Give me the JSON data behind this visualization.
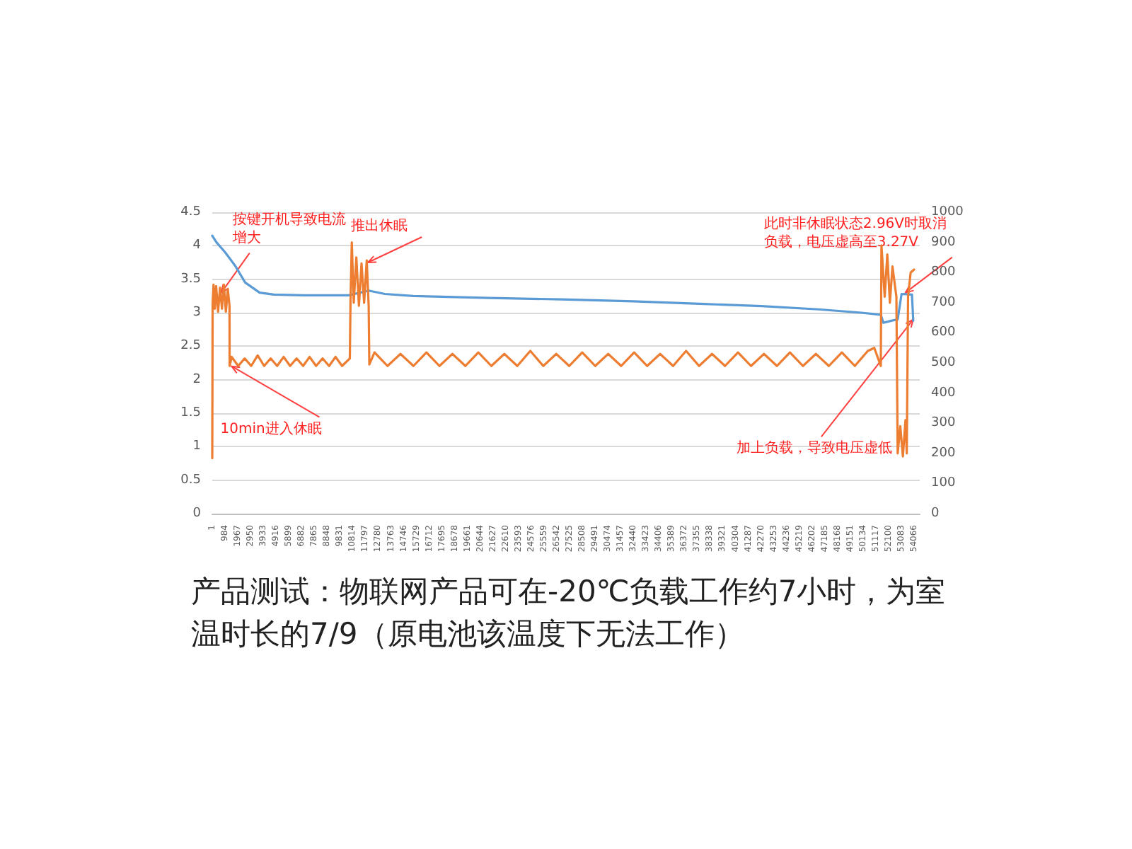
{
  "chart_data": {
    "type": "line",
    "grid": "y",
    "marker": "none",
    "line_style": "solid",
    "xlim": [
      1,
      54500
    ],
    "xticks": [
      1,
      984,
      1967,
      2950,
      3933,
      4916,
      5899,
      6882,
      7865,
      8848,
      9831,
      10814,
      11797,
      12780,
      13763,
      14746,
      15729,
      16712,
      17695,
      18678,
      19661,
      20644,
      21627,
      22610,
      23593,
      24576,
      25559,
      26542,
      27525,
      28508,
      29491,
      30474,
      31457,
      32440,
      33423,
      34406,
      35389,
      36372,
      37355,
      38338,
      39321,
      40304,
      41287,
      42270,
      43253,
      44236,
      45219,
      46202,
      47185,
      48168,
      49151,
      50134,
      51117,
      52100,
      53083,
      54066
    ],
    "ylim": [
      0,
      4.5
    ],
    "yticks": [
      0,
      0.5,
      1,
      1.5,
      2,
      2.5,
      3,
      3.5,
      4,
      4.5
    ],
    "y2lim": [
      0,
      1000
    ],
    "y2ticks": [
      0,
      100,
      200,
      300,
      400,
      500,
      600,
      700,
      800,
      900,
      1000
    ],
    "series": [
      {
        "color": "#5b9bd5",
        "x": [
          1,
          330,
          1000,
          1770,
          2540,
          3650,
          4750,
          7000,
          10500,
          12050,
          13300,
          15500,
          21300,
          26850,
          32400,
          37900,
          42300,
          46700,
          50000,
          51500,
          51700,
          52300,
          52800,
          53100,
          53900,
          54000,
          54066
        ],
        "values": [
          4.15,
          4.05,
          3.9,
          3.7,
          3.45,
          3.3,
          3.27,
          3.26,
          3.26,
          3.33,
          3.28,
          3.25,
          3.22,
          3.2,
          3.17,
          3.13,
          3.1,
          3.05,
          3.0,
          2.97,
          2.85,
          2.88,
          2.9,
          3.28,
          3.27,
          2.88,
          2.88
        ]
      },
      {
        "color": "#ed7d31",
        "axis": "y2",
        "x": [
          1,
          30,
          100,
          200,
          300,
          450,
          600,
          750,
          900,
          1050,
          1200,
          1330,
          1340,
          1500,
          2000,
          2500,
          3000,
          3500,
          4000,
          4500,
          5000,
          5500,
          6000,
          6500,
          7000,
          7500,
          8000,
          8500,
          9000,
          9500,
          10000,
          10600,
          10650,
          10750,
          10900,
          11100,
          11300,
          11500,
          11700,
          11900,
          12050,
          12100,
          12500,
          13500,
          14500,
          15500,
          16500,
          17500,
          18500,
          19500,
          20500,
          21500,
          22500,
          23500,
          24500,
          25500,
          26500,
          27500,
          28500,
          29500,
          30500,
          31500,
          32500,
          33500,
          34500,
          35500,
          36500,
          37500,
          38500,
          39500,
          40500,
          41500,
          42500,
          43500,
          44500,
          45500,
          46500,
          47500,
          48500,
          49500,
          50500,
          51000,
          51500,
          51550,
          51800,
          52000,
          52200,
          52400,
          52700,
          52800,
          53000,
          53200,
          53400,
          53500,
          53600,
          53800,
          54066
        ],
        "values": [
          184,
          700,
          760,
          680,
          755,
          670,
          750,
          680,
          760,
          670,
          745,
          690,
          490,
          520,
          490,
          515,
          490,
          525,
          490,
          515,
          490,
          520,
          490,
          515,
          490,
          520,
          490,
          515,
          490,
          520,
          490,
          515,
          700,
          900,
          700,
          850,
          690,
          830,
          700,
          840,
          690,
          495,
          535,
          490,
          530,
          490,
          535,
          490,
          530,
          490,
          535,
          490,
          530,
          490,
          540,
          490,
          530,
          490,
          535,
          490,
          530,
          490,
          535,
          490,
          530,
          490,
          540,
          490,
          530,
          490,
          535,
          490,
          530,
          490,
          535,
          490,
          530,
          490,
          535,
          490,
          540,
          550,
          490,
          890,
          720,
          860,
          700,
          820,
          720,
          200,
          290,
          190,
          310,
          200,
          720,
          800,
          810
        ]
      }
    ],
    "annotations": [
      {
        "text": "按键开机导致电流增大",
        "x": 700,
        "y": 3.3
      },
      {
        "text": "10min进入休眠",
        "x": 1500,
        "y": 2.2
      },
      {
        "text": "推出休眠",
        "x": 12000,
        "y": 3.75
      },
      {
        "text": "此时非休眠状态2.96V时取消负载，电压虚高至3.27V",
        "x": 53400,
        "y": 3.3
      },
      {
        "text": "加上负载，导致电压虚低",
        "x": 54000,
        "y": 2.9
      },
      "产品测试：物联网产品可在-20℃负载工作约7小时，为室温时长的7/9（原电池该温度下无法工作）"
    ]
  }
}
